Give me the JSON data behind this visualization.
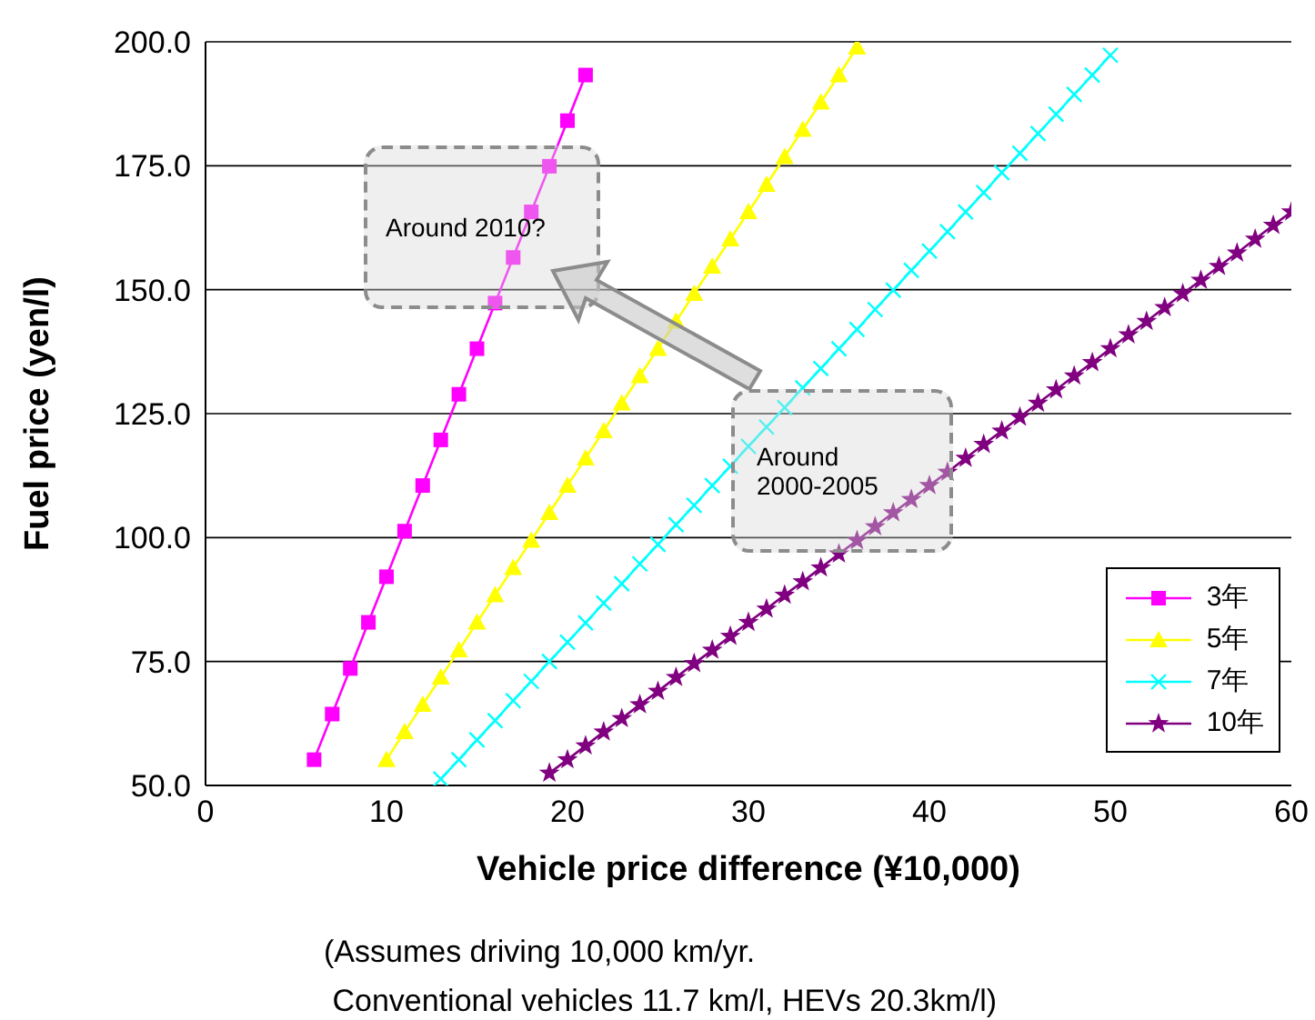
{
  "chart_data": {
    "type": "line",
    "xlabel": "Vehicle price difference (¥10,000)",
    "ylabel": "Fuel price (yen/l)",
    "xlim": [
      0,
      60
    ],
    "xticks": [
      0,
      10,
      20,
      30,
      40,
      50,
      60
    ],
    "ylim": [
      50,
      200
    ],
    "yticks": [
      {
        "value": 50,
        "label": "50.0"
      },
      {
        "value": 75,
        "label": "75.0"
      },
      {
        "value": 100,
        "label": "100.0"
      },
      {
        "value": 125,
        "label": "125.0"
      },
      {
        "value": 150,
        "label": "150.0"
      },
      {
        "value": 175,
        "label": "175.0"
      },
      {
        "value": 200,
        "label": "200.0"
      }
    ],
    "grid": "y",
    "legend": "bottom right",
    "annotations": [
      "Around 2010?",
      "Around 2000-2005",
      "(Assumes driving 10,000 km/yr.\n Conventional vehicles 11.7 km/l, HEVs 20.3km/l)"
    ],
    "series": [
      {
        "name": "3年",
        "color": "#ff00ff",
        "marker": "square",
        "x": [
          6,
          7,
          8,
          9,
          10,
          11,
          12,
          13,
          14,
          15,
          16,
          17,
          18,
          19,
          20,
          21
        ],
        "values": [
          55.2,
          64.4,
          73.6,
          82.9,
          92.1,
          101.3,
          110.5,
          119.7,
          128.9,
          138.1,
          147.3,
          156.5,
          165.7,
          174.9,
          184.1,
          193.3
        ]
      },
      {
        "name": "5年",
        "color": "#ffff00",
        "marker": "triangle",
        "x": [
          10,
          11,
          12,
          13,
          14,
          15,
          16,
          17,
          18,
          19,
          20,
          21,
          22,
          23,
          24,
          25,
          26,
          27,
          28,
          29,
          30,
          31,
          32,
          33,
          34,
          35,
          36
        ],
        "values": [
          55.2,
          60.8,
          66.3,
          71.8,
          77.3,
          82.9,
          88.4,
          93.9,
          99.4,
          105.0,
          110.5,
          116.0,
          121.5,
          127.1,
          132.6,
          138.1,
          143.6,
          149.2,
          154.7,
          160.2,
          165.7,
          171.2,
          176.8,
          182.3,
          187.8,
          193.3,
          198.9
        ]
      },
      {
        "name": "7年",
        "color": "#00ffff",
        "marker": "cross",
        "x": [
          13,
          14,
          15,
          16,
          17,
          18,
          19,
          20,
          21,
          22,
          23,
          24,
          25,
          26,
          27,
          28,
          29,
          30,
          31,
          32,
          33,
          34,
          35,
          36,
          37,
          38,
          39,
          40,
          41,
          42,
          43,
          44,
          45,
          46,
          47,
          48,
          49,
          50
        ],
        "values": [
          51.3,
          55.2,
          59.2,
          63.1,
          67.1,
          71.0,
          75.0,
          78.9,
          82.8,
          86.8,
          90.7,
          94.7,
          98.6,
          102.6,
          106.5,
          110.5,
          114.4,
          118.4,
          122.3,
          126.2,
          130.2,
          134.1,
          138.1,
          142.0,
          146.0,
          149.9,
          153.9,
          157.8,
          161.7,
          165.7,
          169.6,
          173.6,
          177.5,
          181.5,
          185.4,
          189.4,
          193.3,
          197.3
        ]
      },
      {
        "name": "10年",
        "color": "#800080",
        "marker": "star",
        "x": [
          19,
          20,
          21,
          22,
          23,
          24,
          25,
          26,
          27,
          28,
          29,
          30,
          31,
          32,
          33,
          34,
          35,
          36,
          37,
          38,
          39,
          40,
          41,
          42,
          43,
          44,
          45,
          46,
          47,
          48,
          49,
          50,
          51,
          52,
          53,
          54,
          55,
          56,
          57,
          58,
          59,
          60
        ],
        "values": [
          52.5,
          55.2,
          58.0,
          60.8,
          63.5,
          66.3,
          69.0,
          71.8,
          74.6,
          77.3,
          80.1,
          82.9,
          85.6,
          88.4,
          91.1,
          93.9,
          96.7,
          99.4,
          102.2,
          105.0,
          107.7,
          110.5,
          113.2,
          116.0,
          118.8,
          121.5,
          124.3,
          127.1,
          129.8,
          132.6,
          135.3,
          138.1,
          140.9,
          143.6,
          146.4,
          149.2,
          151.9,
          154.7,
          157.4,
          160.2,
          163.0,
          165.7
        ]
      }
    ]
  }
}
